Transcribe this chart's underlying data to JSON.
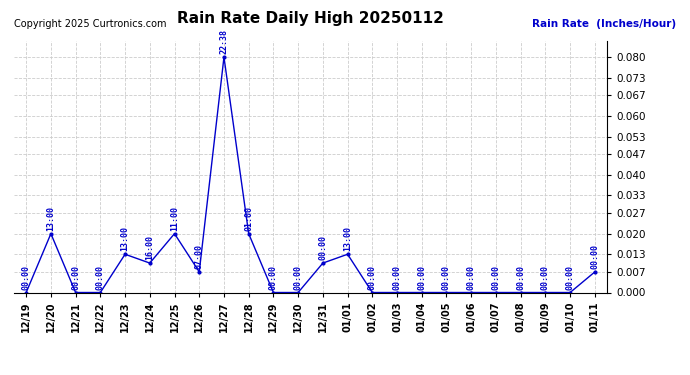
{
  "title": "Rain Rate Daily High 20250112",
  "copyright": "Copyright 2025 Curtronics.com",
  "ylabel": "Rain Rate  (Inches/Hour)",
  "ylim": [
    0.0,
    0.0854
  ],
  "yticks": [
    0.0,
    0.007,
    0.013,
    0.02,
    0.027,
    0.033,
    0.04,
    0.047,
    0.053,
    0.06,
    0.067,
    0.073,
    0.08
  ],
  "line_color": "#0000cc",
  "title_color": "black",
  "ylabel_color": "#0000cc",
  "copyright_color": "black",
  "annotation_color": "#0000cc",
  "bg_color": "white",
  "grid_color": "#cccccc",
  "data_points": [
    {
      "date": "12/19",
      "value": 0.0,
      "time": "00:00"
    },
    {
      "date": "12/20",
      "value": 0.02,
      "time": "13:00"
    },
    {
      "date": "12/21",
      "value": 0.0,
      "time": "00:00"
    },
    {
      "date": "12/22",
      "value": 0.0,
      "time": "00:00"
    },
    {
      "date": "12/23",
      "value": 0.013,
      "time": "13:00"
    },
    {
      "date": "12/24",
      "value": 0.01,
      "time": "16:00"
    },
    {
      "date": "12/25",
      "value": 0.02,
      "time": "11:00"
    },
    {
      "date": "12/26",
      "value": 0.007,
      "time": "07:00"
    },
    {
      "date": "12/27",
      "value": 0.08,
      "time": "22:38"
    },
    {
      "date": "12/28",
      "value": 0.02,
      "time": "01:00"
    },
    {
      "date": "12/29",
      "value": 0.0,
      "time": "00:00"
    },
    {
      "date": "12/30",
      "value": 0.0,
      "time": "00:00"
    },
    {
      "date": "12/31",
      "value": 0.01,
      "time": "00:00"
    },
    {
      "date": "01/01",
      "value": 0.013,
      "time": "13:00"
    },
    {
      "date": "01/02",
      "value": 0.0,
      "time": "00:00"
    },
    {
      "date": "01/03",
      "value": 0.0,
      "time": "00:00"
    },
    {
      "date": "01/04",
      "value": 0.0,
      "time": "00:00"
    },
    {
      "date": "01/05",
      "value": 0.0,
      "time": "00:00"
    },
    {
      "date": "01/06",
      "value": 0.0,
      "time": "00:00"
    },
    {
      "date": "01/07",
      "value": 0.0,
      "time": "00:00"
    },
    {
      "date": "01/08",
      "value": 0.0,
      "time": "00:00"
    },
    {
      "date": "01/09",
      "value": 0.0,
      "time": "00:00"
    },
    {
      "date": "01/10",
      "value": 0.0,
      "time": "00:00"
    },
    {
      "date": "01/11",
      "value": 0.007,
      "time": "00:00"
    }
  ]
}
